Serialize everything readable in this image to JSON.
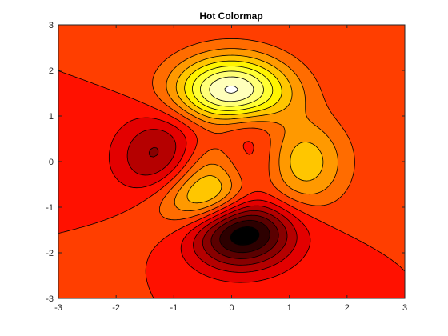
{
  "chart_data": {
    "type": "filled-contour",
    "function": "peaks",
    "colormap": "hot",
    "title": "Hot Colormap",
    "xlabel": "",
    "ylabel": "",
    "xlim": [
      -3,
      3
    ],
    "ylim": [
      -3,
      3
    ],
    "x_ticks": [
      "-3",
      "-2",
      "-1",
      "0",
      "1",
      "2",
      "3"
    ],
    "y_ticks": [
      "3",
      "2",
      "1",
      "0",
      "-1",
      "-2",
      "-3"
    ],
    "z_min": -6.55,
    "z_max": 8.1,
    "levels": [
      -6,
      -5,
      -4,
      -3,
      -2,
      -1,
      0,
      1,
      2,
      3,
      4,
      5,
      6,
      7,
      8
    ],
    "extrema": [
      {
        "kind": "max",
        "x": 0.0,
        "y": 1.58,
        "z": 8.1
      },
      {
        "kind": "min",
        "x": 0.23,
        "y": -1.63,
        "z": -6.55
      },
      {
        "kind": "max",
        "x": 1.29,
        "y": 0.0,
        "z": 3.78
      },
      {
        "kind": "min",
        "x": -1.35,
        "y": 0.2,
        "z": -3.05
      },
      {
        "kind": "max",
        "x": -0.46,
        "y": -0.63,
        "z": 3.59
      }
    ],
    "grid": false,
    "line_color": "#000000",
    "background_color": "#ffffff"
  }
}
